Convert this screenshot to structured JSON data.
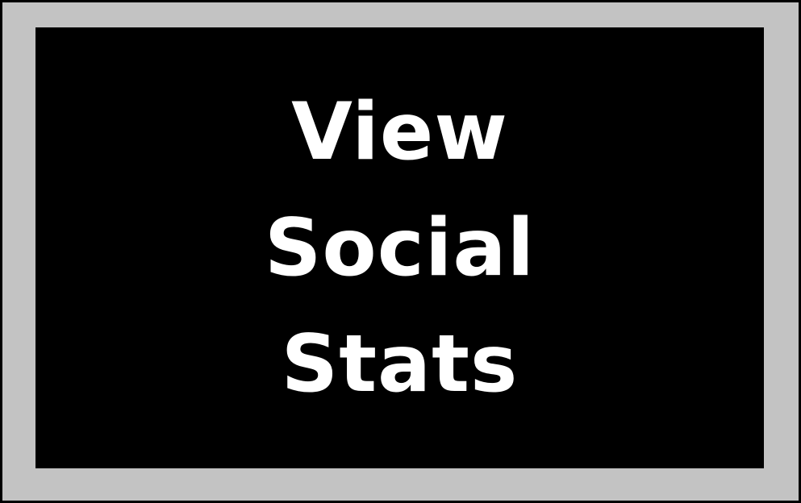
{
  "button": {
    "lines": [
      "View",
      "Social",
      "Stats"
    ]
  },
  "colors": {
    "outer_border": "#000000",
    "frame": "#c3c3c3",
    "button_background": "#000000",
    "label": "#ffffff"
  }
}
